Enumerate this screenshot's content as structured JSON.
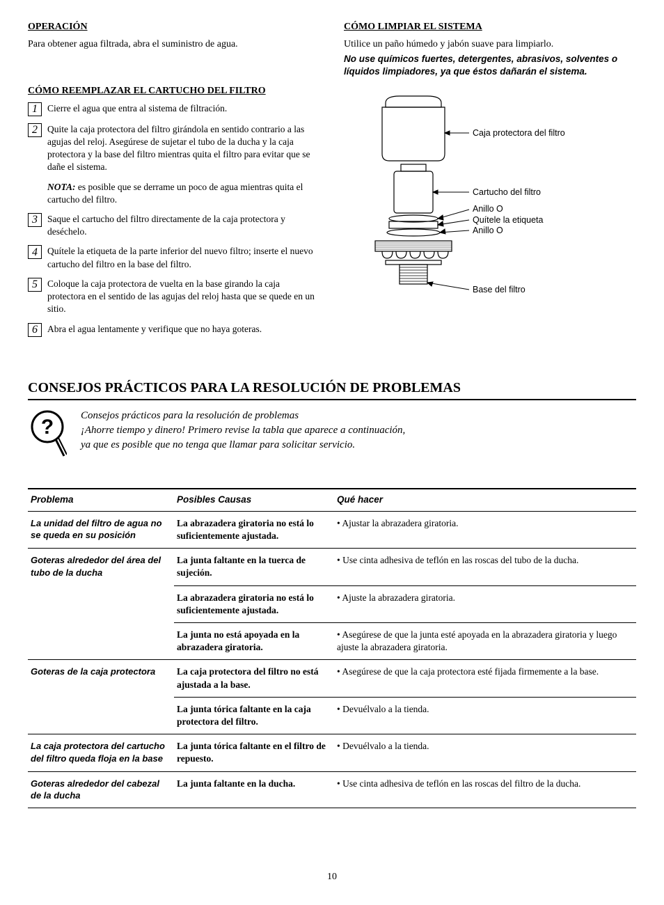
{
  "sections": {
    "operacion": {
      "heading": "OPERACIÓN",
      "text": "Para obtener agua filtrada, abra el suministro de agua."
    },
    "limpiar": {
      "heading": "CÓMO LIMPIAR EL SISTEMA",
      "text": "Utilice un paño húmedo y jabón suave para limpiarlo.",
      "warning": "No use químicos fuertes, detergentes, abrasivos, solventes o líquidos limpiadores, ya que éstos dañarán el sistema."
    },
    "reemplazar": {
      "heading": "CÓMO REEMPLAZAR EL CARTUCHO DEL FILTRO",
      "steps": [
        {
          "n": "1",
          "text": "Cierre el agua que entra al sistema de filtración."
        },
        {
          "n": "2",
          "text": "Quite la caja protectora del filtro girándola en sentido contrario a las agujas del reloj. Asegúrese de sujetar el tubo de la ducha y la caja protectora y la base del filtro mientras quita el filtro para evitar que se dañe el sistema."
        },
        {
          "n": "3",
          "text": "Saque el cartucho del filtro directamente de la caja protectora y deséchelo."
        },
        {
          "n": "4",
          "text": "Quítele la etiqueta de la parte inferior del nuevo filtro; inserte el nuevo cartucho del filtro en la base del filtro."
        },
        {
          "n": "5",
          "text": "Coloque la caja protectora de vuelta en la base girando la caja protectora en el sentido de las agujas del reloj hasta que se quede en un sitio."
        },
        {
          "n": "6",
          "text": "Abra el agua lentamente y verifique que no haya goteras."
        }
      ],
      "note_label": "NOTA:",
      "note_text": " es posible que se derrame un poco de agua mientras quita el cartucho del filtro."
    }
  },
  "diagram": {
    "labels": {
      "caja": "Caja protectora del filtro",
      "cartucho": "Cartucho del filtro",
      "anillo1": "Anillo O",
      "etiqueta": "Quítele la etiqueta",
      "anillo2": "Anillo O",
      "base": "Base del filtro"
    }
  },
  "troubleshoot": {
    "heading": "CONSEJOS PRÁCTICOS PARA LA RESOLUCIÓN DE PROBLEMAS",
    "tips_line1": "Consejos prácticos para la resolución de problemas",
    "tips_line2": "¡Ahorre tiempo y dinero! Primero revise la tabla que aparece a continuación,",
    "tips_line3": "ya que es posible que no tenga que llamar para solicitar servicio.",
    "columns": {
      "problema": "Problema",
      "causas": "Posibles Causas",
      "hacer": "Qué hacer"
    },
    "rows": [
      {
        "problem": "La unidad del filtro de agua no se queda en su posición",
        "causes": [
          {
            "cause": "La abrazadera giratoria no está lo suficientemente ajustada.",
            "action": "• Ajustar la abrazadera giratoria."
          }
        ]
      },
      {
        "problem": "Goteras alrededor del área del tubo de la ducha",
        "causes": [
          {
            "cause": "La junta faltante en la tuerca de sujeción.",
            "action": "• Use cinta adhesiva de teflón en las roscas del tubo de la ducha."
          },
          {
            "cause": "La abrazadera giratoria no está lo suficientemente ajustada.",
            "action": "• Ajuste la abrazadera giratoria."
          },
          {
            "cause": "La junta no está apoyada en la abrazadera giratoria.",
            "action": "• Asegúrese de que la junta esté apoyada en la abrazadera giratoria y luego ajuste la abrazadera giratoria."
          }
        ]
      },
      {
        "problem": "Goteras de la caja protectora",
        "causes": [
          {
            "cause": "La caja protectora del filtro no está ajustada a la base.",
            "action": "• Asegúrese de que la caja protectora esté fijada firmemente a la base."
          },
          {
            "cause": "La junta tórica faltante en la caja protectora del filtro.",
            "action": "• Devuélvalo a la tienda."
          }
        ]
      },
      {
        "problem": "La caja protectora del cartucho del filtro queda floja en la base",
        "causes": [
          {
            "cause": "La junta tórica faltante en el filtro de repuesto.",
            "action": "• Devuélvalo a la tienda."
          }
        ]
      },
      {
        "problem": "Goteras alrededor del cabezal de la ducha",
        "causes": [
          {
            "cause": "La junta faltante en la ducha.",
            "action": "• Use cinta adhesiva de teflón en las roscas del filtro de la ducha."
          }
        ]
      }
    ]
  },
  "page_number": "10"
}
